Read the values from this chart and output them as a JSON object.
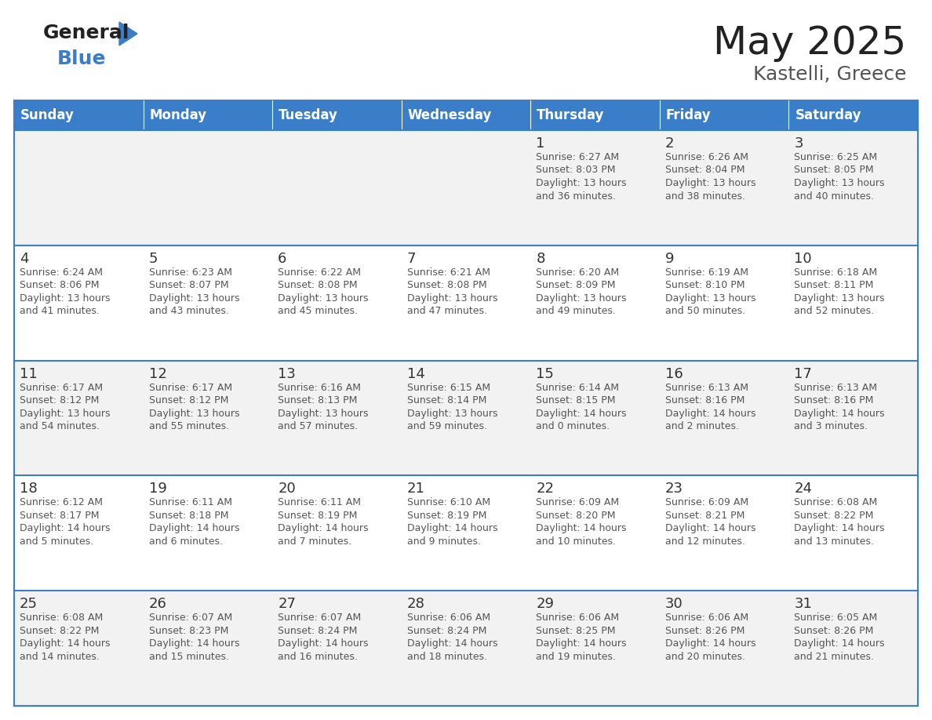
{
  "title": "May 2025",
  "subtitle": "Kastelli, Greece",
  "days_of_week": [
    "Sunday",
    "Monday",
    "Tuesday",
    "Wednesday",
    "Thursday",
    "Friday",
    "Saturday"
  ],
  "header_bg": "#3A7DC9",
  "header_text": "#FFFFFF",
  "row_bg_even": "#F2F2F2",
  "row_bg_odd": "#FFFFFF",
  "cell_text_color": "#555555",
  "day_num_color": "#333333",
  "divider_color": "#3A7DC9",
  "background_color": "#FFFFFF",
  "calendar": [
    [
      null,
      null,
      null,
      null,
      {
        "day": 1,
        "sunrise": "6:27 AM",
        "sunset": "8:03 PM",
        "daylight": "13 hours",
        "daylight2": "and 36 minutes."
      },
      {
        "day": 2,
        "sunrise": "6:26 AM",
        "sunset": "8:04 PM",
        "daylight": "13 hours",
        "daylight2": "and 38 minutes."
      },
      {
        "day": 3,
        "sunrise": "6:25 AM",
        "sunset": "8:05 PM",
        "daylight": "13 hours",
        "daylight2": "and 40 minutes."
      }
    ],
    [
      {
        "day": 4,
        "sunrise": "6:24 AM",
        "sunset": "8:06 PM",
        "daylight": "13 hours",
        "daylight2": "and 41 minutes."
      },
      {
        "day": 5,
        "sunrise": "6:23 AM",
        "sunset": "8:07 PM",
        "daylight": "13 hours",
        "daylight2": "and 43 minutes."
      },
      {
        "day": 6,
        "sunrise": "6:22 AM",
        "sunset": "8:08 PM",
        "daylight": "13 hours",
        "daylight2": "and 45 minutes."
      },
      {
        "day": 7,
        "sunrise": "6:21 AM",
        "sunset": "8:08 PM",
        "daylight": "13 hours",
        "daylight2": "and 47 minutes."
      },
      {
        "day": 8,
        "sunrise": "6:20 AM",
        "sunset": "8:09 PM",
        "daylight": "13 hours",
        "daylight2": "and 49 minutes."
      },
      {
        "day": 9,
        "sunrise": "6:19 AM",
        "sunset": "8:10 PM",
        "daylight": "13 hours",
        "daylight2": "and 50 minutes."
      },
      {
        "day": 10,
        "sunrise": "6:18 AM",
        "sunset": "8:11 PM",
        "daylight": "13 hours",
        "daylight2": "and 52 minutes."
      }
    ],
    [
      {
        "day": 11,
        "sunrise": "6:17 AM",
        "sunset": "8:12 PM",
        "daylight": "13 hours",
        "daylight2": "and 54 minutes."
      },
      {
        "day": 12,
        "sunrise": "6:17 AM",
        "sunset": "8:12 PM",
        "daylight": "13 hours",
        "daylight2": "and 55 minutes."
      },
      {
        "day": 13,
        "sunrise": "6:16 AM",
        "sunset": "8:13 PM",
        "daylight": "13 hours",
        "daylight2": "and 57 minutes."
      },
      {
        "day": 14,
        "sunrise": "6:15 AM",
        "sunset": "8:14 PM",
        "daylight": "13 hours",
        "daylight2": "and 59 minutes."
      },
      {
        "day": 15,
        "sunrise": "6:14 AM",
        "sunset": "8:15 PM",
        "daylight": "14 hours",
        "daylight2": "and 0 minutes."
      },
      {
        "day": 16,
        "sunrise": "6:13 AM",
        "sunset": "8:16 PM",
        "daylight": "14 hours",
        "daylight2": "and 2 minutes."
      },
      {
        "day": 17,
        "sunrise": "6:13 AM",
        "sunset": "8:16 PM",
        "daylight": "14 hours",
        "daylight2": "and 3 minutes."
      }
    ],
    [
      {
        "day": 18,
        "sunrise": "6:12 AM",
        "sunset": "8:17 PM",
        "daylight": "14 hours",
        "daylight2": "and 5 minutes."
      },
      {
        "day": 19,
        "sunrise": "6:11 AM",
        "sunset": "8:18 PM",
        "daylight": "14 hours",
        "daylight2": "and 6 minutes."
      },
      {
        "day": 20,
        "sunrise": "6:11 AM",
        "sunset": "8:19 PM",
        "daylight": "14 hours",
        "daylight2": "and 7 minutes."
      },
      {
        "day": 21,
        "sunrise": "6:10 AM",
        "sunset": "8:19 PM",
        "daylight": "14 hours",
        "daylight2": "and 9 minutes."
      },
      {
        "day": 22,
        "sunrise": "6:09 AM",
        "sunset": "8:20 PM",
        "daylight": "14 hours",
        "daylight2": "and 10 minutes."
      },
      {
        "day": 23,
        "sunrise": "6:09 AM",
        "sunset": "8:21 PM",
        "daylight": "14 hours",
        "daylight2": "and 12 minutes."
      },
      {
        "day": 24,
        "sunrise": "6:08 AM",
        "sunset": "8:22 PM",
        "daylight": "14 hours",
        "daylight2": "and 13 minutes."
      }
    ],
    [
      {
        "day": 25,
        "sunrise": "6:08 AM",
        "sunset": "8:22 PM",
        "daylight": "14 hours",
        "daylight2": "and 14 minutes."
      },
      {
        "day": 26,
        "sunrise": "6:07 AM",
        "sunset": "8:23 PM",
        "daylight": "14 hours",
        "daylight2": "and 15 minutes."
      },
      {
        "day": 27,
        "sunrise": "6:07 AM",
        "sunset": "8:24 PM",
        "daylight": "14 hours",
        "daylight2": "and 16 minutes."
      },
      {
        "day": 28,
        "sunrise": "6:06 AM",
        "sunset": "8:24 PM",
        "daylight": "14 hours",
        "daylight2": "and 18 minutes."
      },
      {
        "day": 29,
        "sunrise": "6:06 AM",
        "sunset": "8:25 PM",
        "daylight": "14 hours",
        "daylight2": "and 19 minutes."
      },
      {
        "day": 30,
        "sunrise": "6:06 AM",
        "sunset": "8:26 PM",
        "daylight": "14 hours",
        "daylight2": "and 20 minutes."
      },
      {
        "day": 31,
        "sunrise": "6:05 AM",
        "sunset": "8:26 PM",
        "daylight": "14 hours",
        "daylight2": "and 21 minutes."
      }
    ]
  ],
  "logo_general_color": "#222222",
  "logo_blue_color": "#3A7DC9",
  "logo_triangle_color": "#3A7DC9",
  "title_fontsize": 36,
  "subtitle_fontsize": 18,
  "header_fontsize": 12,
  "day_num_fontsize": 13,
  "cell_fontsize": 9
}
